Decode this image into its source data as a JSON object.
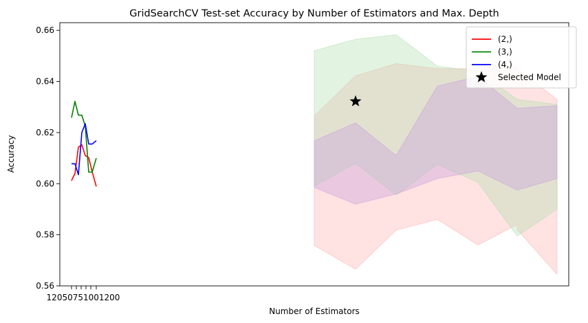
{
  "chart_data": {
    "type": "line",
    "title": "GridSearchCV Test-set Accuracy by Number of Estimators and Max. Depth",
    "xlabel": "Number of Estimators",
    "ylabel": "Accuracy",
    "ylim": [
      0.56,
      0.663
    ],
    "yticks": [
      0.56,
      0.58,
      0.6,
      0.62,
      0.64,
      0.66
    ],
    "ytick_labels": [
      "0.56",
      "0.58",
      "0.60",
      "0.62",
      "0.64",
      "0.66"
    ],
    "x_tick_labels_text": "12050751001200",
    "grid": false,
    "legend_position": "top-right",
    "x_index": [
      0,
      1,
      2,
      3,
      4,
      5,
      6,
      7
    ],
    "series": [
      {
        "name": "(2,)",
        "color": "#ff0000",
        "band_color": "#ffb3b3",
        "values": [
          0.6012,
          0.604,
          0.6143,
          0.6152,
          0.611,
          0.6102,
          0.6047,
          0.5989
        ],
        "band_upper": [
          0.6265,
          0.6422,
          0.647,
          0.645,
          0.645,
          0.646,
          0.645,
          0.633
        ],
        "band_lower": [
          0.5758,
          0.5665,
          0.5818,
          0.586,
          0.576,
          0.584,
          0.582,
          0.5645
        ]
      },
      {
        "name": "(3,)",
        "color": "#008000",
        "band_color": "#b3dfb3",
        "values": [
          0.6258,
          0.6322,
          0.6268,
          0.6268,
          0.6225,
          0.6045,
          0.6045,
          0.61
        ],
        "band_upper": [
          0.652,
          0.6565,
          0.6583,
          0.646,
          0.644,
          0.633,
          0.633,
          0.631
        ],
        "band_lower": [
          0.599,
          0.608,
          0.5955,
          0.6075,
          0.6005,
          0.5795,
          0.5795,
          0.59
        ]
      },
      {
        "name": "(4,)",
        "color": "#0000ff",
        "band_color": "#c9a0dc",
        "values": [
          0.6078,
          0.6078,
          0.6035,
          0.62,
          0.6235,
          0.6155,
          0.6155,
          0.6168
        ],
        "band_upper": [
          0.6168,
          0.6238,
          0.611,
          0.6382,
          0.642,
          0.6295,
          0.6295,
          0.6305
        ],
        "band_lower": [
          0.5985,
          0.592,
          0.596,
          0.602,
          0.605,
          0.5975,
          0.5975,
          0.602
        ]
      }
    ],
    "selected_model": {
      "name": "Selected Model",
      "x_index": 1,
      "value": 0.6322,
      "marker": "star",
      "color": "#000000"
    }
  }
}
